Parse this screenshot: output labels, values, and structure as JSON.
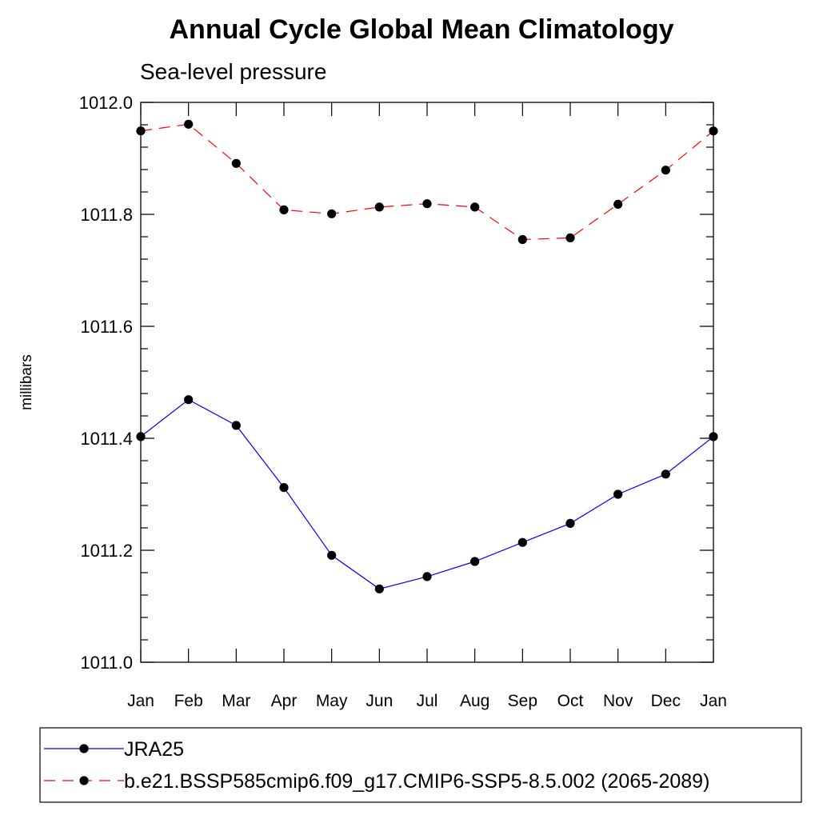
{
  "chart_data": {
    "type": "line",
    "title": "Annual Cycle Global Mean Climatology",
    "subtitle": "Sea-level pressure",
    "xlabel": "",
    "ylabel": "millibars",
    "ylim": [
      1011.0,
      1012.0
    ],
    "y_major_ticks": [
      "1011.0",
      "1011.2",
      "1011.4",
      "1011.6",
      "1011.8",
      "1012.0"
    ],
    "y_minor_step": 0.04,
    "categories": [
      "Jan",
      "Feb",
      "Mar",
      "Apr",
      "May",
      "Jun",
      "Jul",
      "Aug",
      "Sep",
      "Oct",
      "Nov",
      "Dec",
      "Jan"
    ],
    "grid": false,
    "legend_position": "bottom",
    "series": [
      {
        "name": "JRA25",
        "color": "#0000ff",
        "dash": "solid",
        "marker": "filled-circle",
        "values": [
          1011.403,
          1011.469,
          1011.423,
          1011.312,
          1011.191,
          1011.131,
          1011.153,
          1011.18,
          1011.214,
          1011.248,
          1011.3,
          1011.336,
          1011.403
        ]
      },
      {
        "name": "b.e21.BSSP585cmip6.f09_g17.CMIP6-SSP5-8.5.002 (2065-2089)",
        "color": "#ff0000",
        "dash": "dashed",
        "marker": "filled-circle",
        "values": [
          1011.949,
          1011.961,
          1011.891,
          1011.808,
          1011.801,
          1011.813,
          1011.819,
          1011.813,
          1011.755,
          1011.758,
          1011.818,
          1011.879,
          1011.949
        ]
      }
    ]
  }
}
